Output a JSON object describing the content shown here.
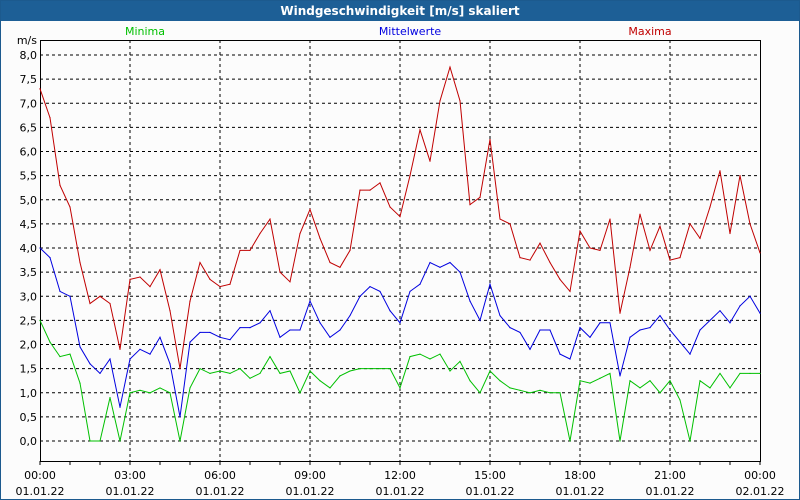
{
  "chart_data": {
    "type": "line",
    "title": "Windgeschwindigkeit [m/s] skaliert",
    "ylabel": "m/s",
    "ylim": [
      0,
      8.0
    ],
    "yticks": [
      "0,0",
      "0,5",
      "1,0",
      "1,5",
      "2,0",
      "2,5",
      "3,0",
      "3,5",
      "4,0",
      "4,5",
      "5,0",
      "5,5",
      "6,0",
      "6,5",
      "7,0",
      "7,5",
      "8,0"
    ],
    "xrange_hours": [
      0,
      24
    ],
    "x_step_minutes": 20,
    "xticks": [
      {
        "time": "00:00",
        "date": "01.01.22"
      },
      {
        "time": "03:00",
        "date": "01.01.22"
      },
      {
        "time": "06:00",
        "date": "01.01.22"
      },
      {
        "time": "09:00",
        "date": "01.01.22"
      },
      {
        "time": "12:00",
        "date": "01.01.22"
      },
      {
        "time": "15:00",
        "date": "01.01.22"
      },
      {
        "time": "18:00",
        "date": "01.01.22"
      },
      {
        "time": "21:00",
        "date": "01.01.22"
      },
      {
        "time": "00:00",
        "date": "02.01.22"
      }
    ],
    "grid": true,
    "legend_placement": "top",
    "series": [
      {
        "name": "Minima",
        "color": "#00c000",
        "values": [
          2.5,
          2.05,
          1.75,
          1.8,
          1.2,
          0,
          0,
          0.9,
          0,
          1.0,
          1.05,
          1.0,
          1.1,
          1.0,
          0,
          1.1,
          1.5,
          1.4,
          1.45,
          1.4,
          1.5,
          1.3,
          1.4,
          1.75,
          1.4,
          1.45,
          1.0,
          1.45,
          1.25,
          1.1,
          1.35,
          1.45,
          1.5,
          1.5,
          1.5,
          1.5,
          1.1,
          1.75,
          1.8,
          1.7,
          1.8,
          1.45,
          1.65,
          1.25,
          1.0,
          1.45,
          1.25,
          1.1,
          1.05,
          1.0,
          1.05,
          1.0,
          1.0,
          0,
          1.25,
          1.2,
          1.3,
          1.4,
          0,
          1.25,
          1.1,
          1.25,
          1.0,
          1.25,
          0.85,
          0,
          1.25,
          1.1,
          1.4,
          1.1,
          1.4,
          1.4,
          1.4
        ]
      },
      {
        "name": "Mittelwerte",
        "color": "#0000e0",
        "values": [
          4.0,
          3.8,
          3.1,
          3.0,
          1.95,
          1.6,
          1.4,
          1.7,
          0.7,
          1.7,
          1.9,
          1.8,
          2.15,
          1.6,
          0.5,
          2.05,
          2.25,
          2.25,
          2.15,
          2.1,
          2.35,
          2.35,
          2.45,
          2.7,
          2.15,
          2.3,
          2.3,
          2.9,
          2.45,
          2.15,
          2.3,
          2.6,
          3.0,
          3.2,
          3.1,
          2.7,
          2.45,
          3.1,
          3.25,
          3.7,
          3.6,
          3.7,
          3.5,
          2.9,
          2.5,
          3.25,
          2.6,
          2.35,
          2.25,
          1.9,
          2.3,
          2.3,
          1.8,
          1.7,
          2.35,
          2.15,
          2.45,
          2.45,
          1.35,
          2.15,
          2.3,
          2.35,
          2.6,
          2.3,
          2.05,
          1.8,
          2.3,
          2.5,
          2.7,
          2.45,
          2.8,
          3.0,
          2.65
        ]
      },
      {
        "name": "Maxima",
        "color": "#c00000",
        "values": [
          7.3,
          6.7,
          5.3,
          4.85,
          3.7,
          2.85,
          3.0,
          2.85,
          1.9,
          3.35,
          3.4,
          3.2,
          3.55,
          2.7,
          1.5,
          2.9,
          3.7,
          3.35,
          3.2,
          3.25,
          3.95,
          3.95,
          4.3,
          4.6,
          3.5,
          3.3,
          4.3,
          4.8,
          4.2,
          3.7,
          3.6,
          3.95,
          5.2,
          5.2,
          5.35,
          4.85,
          4.65,
          5.5,
          6.45,
          5.8,
          7.05,
          7.75,
          7.05,
          4.9,
          5.05,
          6.25,
          4.6,
          4.5,
          3.8,
          3.75,
          4.1,
          3.7,
          3.35,
          3.1,
          4.35,
          4.0,
          3.95,
          4.6,
          2.65,
          3.6,
          4.7,
          3.95,
          4.45,
          3.75,
          3.8,
          4.5,
          4.2,
          4.85,
          5.6,
          4.3,
          5.5,
          4.5,
          3.9
        ]
      }
    ]
  }
}
